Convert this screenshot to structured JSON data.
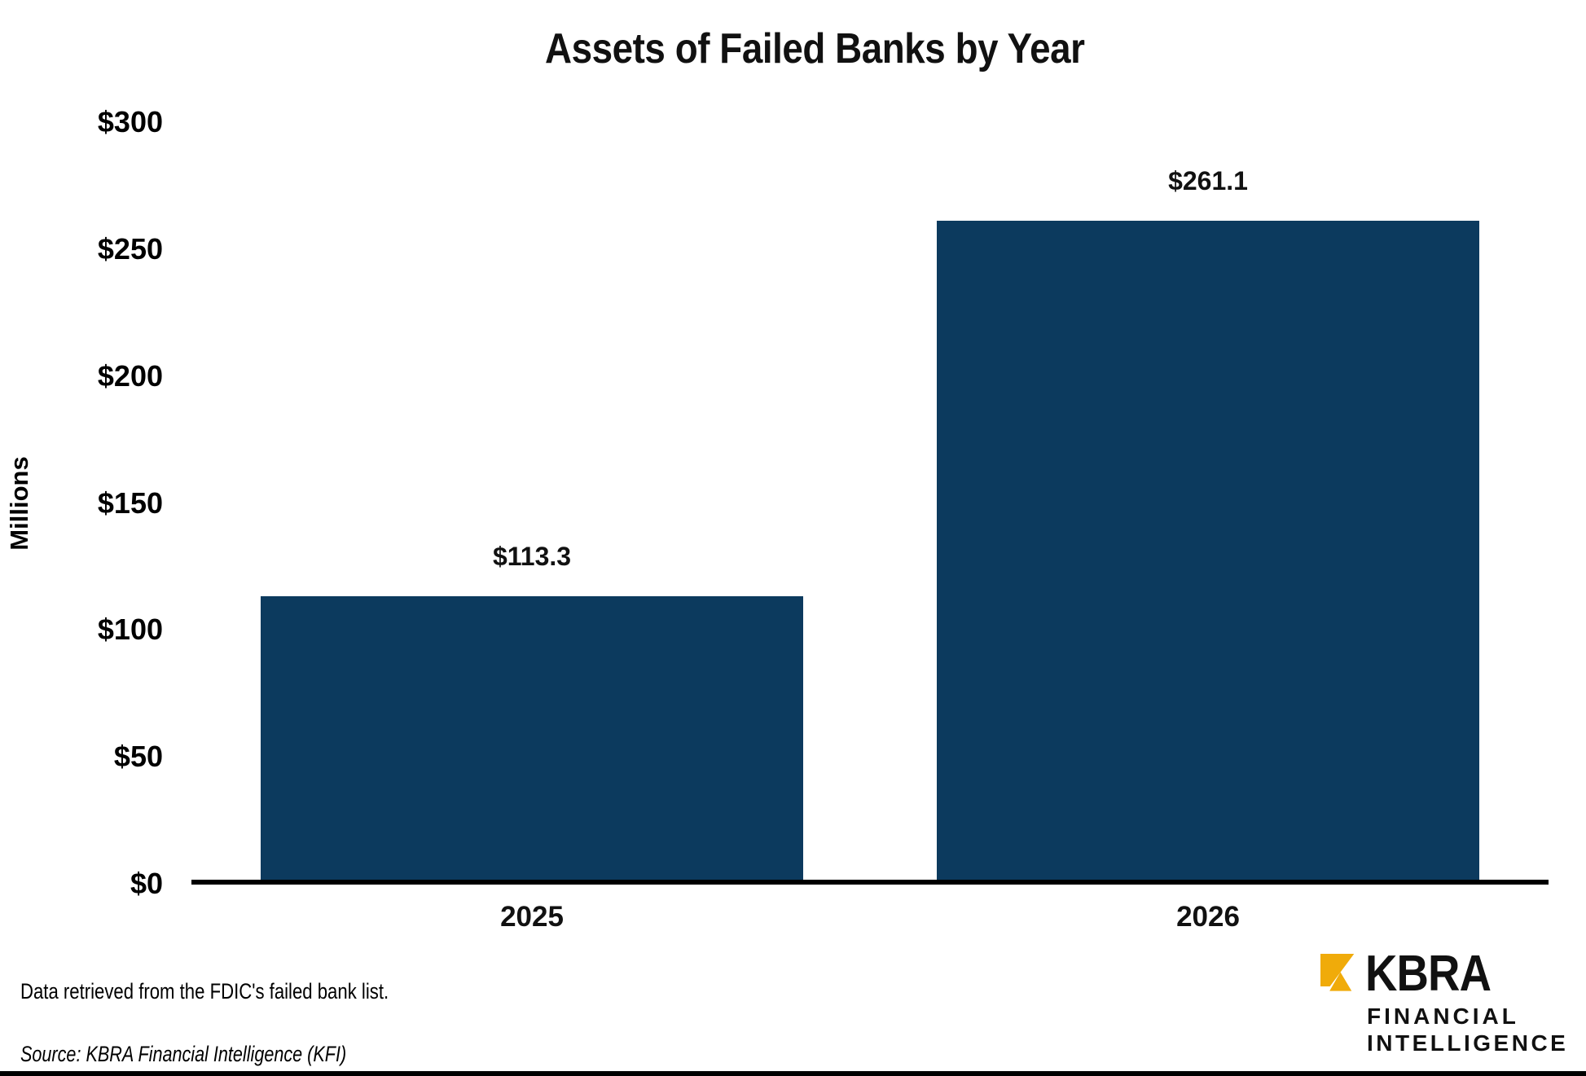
{
  "chart_data": {
    "type": "bar",
    "title": "Assets of Failed Banks by Year",
    "categories": [
      "2025",
      "2026"
    ],
    "values": [
      113.3,
      261.1
    ],
    "value_labels": [
      "$113.3",
      "$261.1"
    ],
    "xlabel": "",
    "ylabel": "Millions",
    "ylim": [
      0,
      300
    ],
    "ytick_labels": [
      "$300",
      "$250",
      "$200",
      "$150",
      "$100",
      "$50",
      "$0"
    ],
    "bar_color": "#0C3A5E",
    "axis_color": "#000000",
    "grid": false,
    "legend": false
  },
  "notes": {
    "data_note": "Data retrieved from the FDIC's failed bank list.",
    "source_note": "Source: KBRA Financial Intelligence (KFI)"
  },
  "logo": {
    "brand": "KBRA",
    "line1": "FINANCIAL",
    "line2": "INTELLIGENCE",
    "mark_color": "#F0AB0A",
    "text_color": "#111111"
  }
}
